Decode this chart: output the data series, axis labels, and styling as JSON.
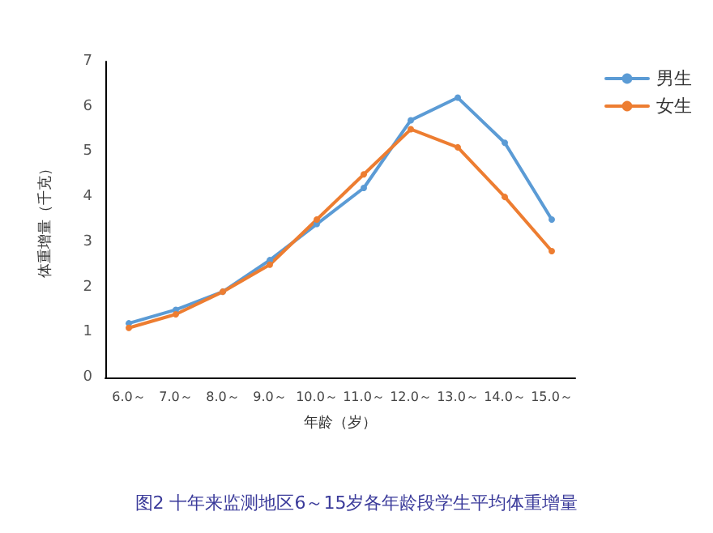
{
  "chart_data": {
    "type": "line",
    "title": "图2 十年来监测地区6～15岁各年龄段学生平均体重增量",
    "xlabel": "年龄（岁）",
    "ylabel": "体重增量（千克）",
    "categories": [
      "6.0～",
      "7.0～",
      "8.0～",
      "9.0～",
      "10.0～",
      "11.0～",
      "12.0～",
      "13.0～",
      "14.0～",
      "15.0～"
    ],
    "series": [
      {
        "name": "男生",
        "color": "#5b9bd5",
        "values": [
          1.2,
          1.5,
          1.9,
          2.6,
          3.4,
          4.2,
          5.7,
          6.2,
          5.2,
          3.5
        ]
      },
      {
        "name": "女生",
        "color": "#ed7d31",
        "values": [
          1.1,
          1.4,
          1.9,
          2.5,
          3.5,
          4.5,
          5.5,
          5.1,
          4.0,
          2.8
        ]
      }
    ],
    "ylim": [
      0,
      7
    ],
    "yticks": [
      0,
      1,
      2,
      3,
      4,
      5,
      6,
      7
    ],
    "grid": false,
    "legend": "top right",
    "marker": "circle",
    "line_style": "solid"
  }
}
